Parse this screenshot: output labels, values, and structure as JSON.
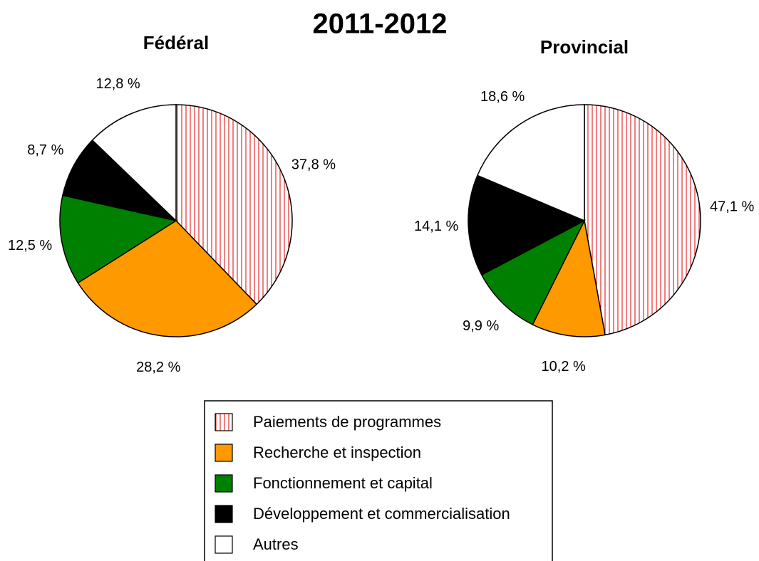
{
  "title": "2011-2012",
  "chart_data": [
    {
      "type": "pie",
      "title": "Fédéral",
      "categories": [
        "Paiements de programmes",
        "Recherche et inspection",
        "Fonctionnement et capital",
        "Développement et commercialisation",
        "Autres"
      ],
      "values": [
        37.8,
        28.2,
        12.5,
        8.7,
        12.8
      ],
      "value_labels": [
        "37,8 %",
        "28,2 %",
        "12,5 %",
        "8,7 %",
        "12,8 %"
      ],
      "colors": [
        "#e00000",
        "#ff9900",
        "#008000",
        "#000000",
        "#ffffff"
      ],
      "hatch": [
        true,
        false,
        false,
        false,
        false
      ]
    },
    {
      "type": "pie",
      "title": "Provincial",
      "categories": [
        "Paiements de programmes",
        "Recherche et inspection",
        "Fonctionnement et capital",
        "Développement et commercialisation",
        "Autres"
      ],
      "values": [
        47.1,
        10.2,
        9.9,
        14.1,
        18.6
      ],
      "value_labels": [
        "47,1 %",
        "10,2 %",
        "9,9 %",
        "14,1 %",
        "18,6 %"
      ],
      "colors": [
        "#e00000",
        "#ff9900",
        "#008000",
        "#000000",
        "#ffffff"
      ],
      "hatch": [
        true,
        false,
        false,
        false,
        false
      ]
    }
  ]
}
